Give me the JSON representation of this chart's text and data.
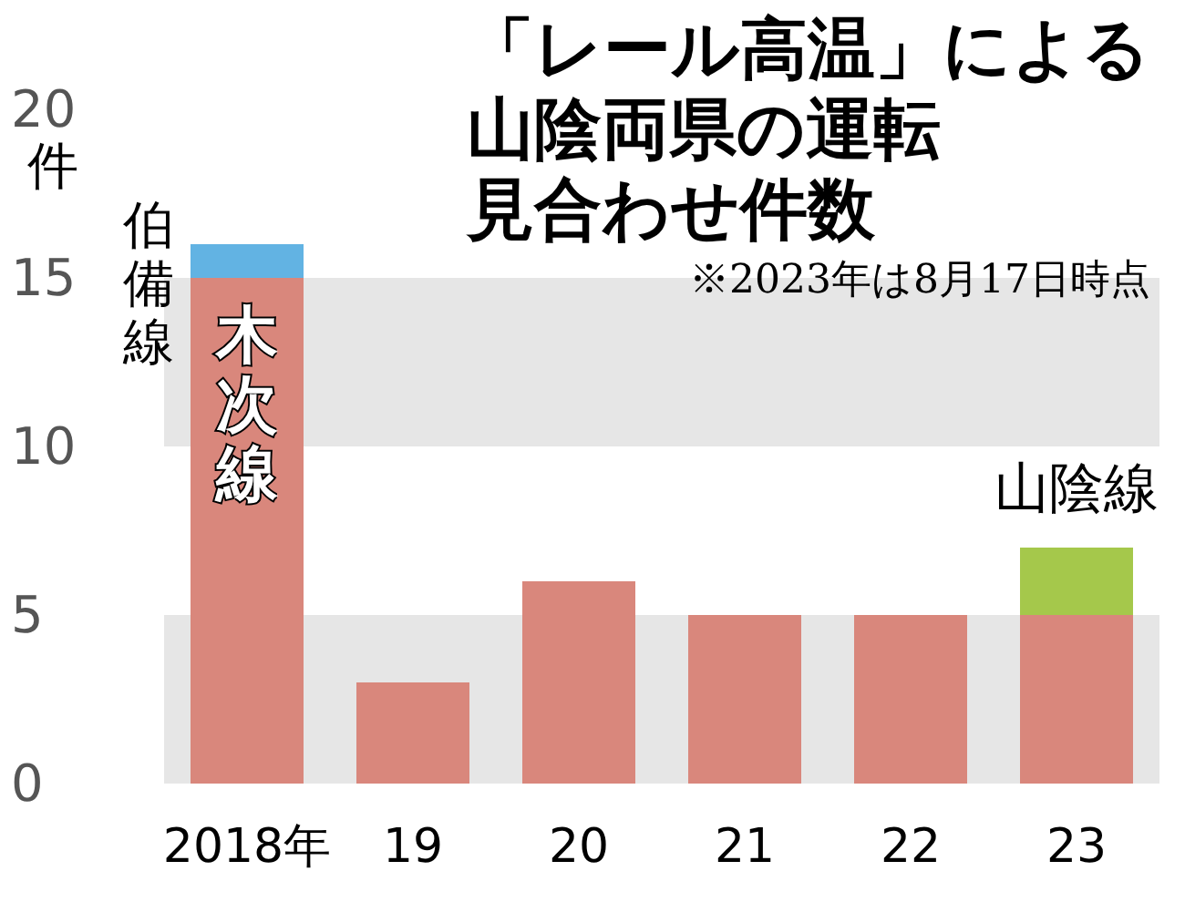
{
  "chart_data": {
    "type": "bar",
    "title": "「レール高温」による山陰両県の運転見合わせ件数",
    "subtitle": "※2023年は8月17日時点",
    "ylabel": "件",
    "categories": [
      "2018年",
      "19",
      "20",
      "21",
      "22",
      "23"
    ],
    "stacked": true,
    "series": [
      {
        "name": "木次線",
        "color": "#d9877c",
        "values": [
          15,
          3,
          6,
          5,
          5,
          5
        ]
      },
      {
        "name": "伯備線",
        "color": "#62b3e3",
        "values": [
          1,
          null,
          null,
          null,
          null,
          null
        ]
      },
      {
        "name": "山陰線",
        "color": "#a5c84b",
        "values": [
          null,
          null,
          null,
          null,
          null,
          2
        ]
      }
    ],
    "ylim": [
      0,
      20
    ],
    "yticks": [
      0,
      5,
      10,
      15,
      20
    ],
    "bands": [
      {
        "axis": "y",
        "from": 0,
        "to": 5,
        "color": "#e6e6e6"
      },
      {
        "axis": "y",
        "from": 10,
        "to": 15,
        "color": "#e6e6e6"
      }
    ],
    "grid": false,
    "legend": false
  }
}
